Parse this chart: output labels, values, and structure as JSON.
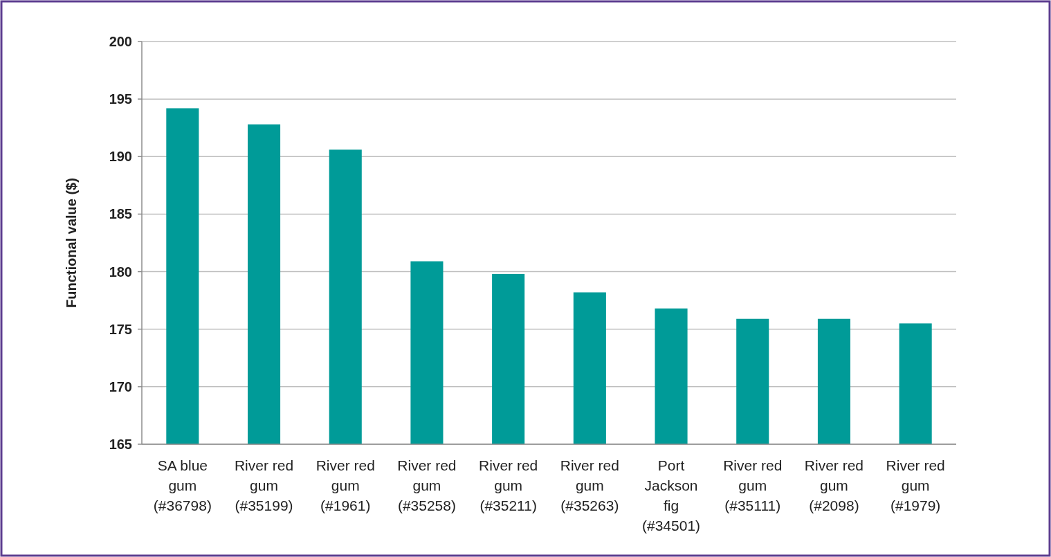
{
  "chart_data": {
    "type": "bar",
    "ylabel": "Functional value ($)",
    "categories": [
      "SA blue gum (#36798)",
      "River red gum (#35199)",
      "River red gum (#1961)",
      "River red gum (#35258)",
      "River red gum (#35211)",
      "River red gum (#35263)",
      "Port Jackson fig (#34501)",
      "River red gum (#35111)",
      "River red gum (#2098)",
      "River red gum (#1979)"
    ],
    "values": [
      194.2,
      192.8,
      190.6,
      180.9,
      179.8,
      178.2,
      176.8,
      175.9,
      175.9,
      175.5
    ],
    "color": "#009b98",
    "ylim": [
      165,
      200
    ],
    "yticks": [
      165,
      170,
      175,
      180,
      185,
      190,
      195,
      200
    ],
    "grid": "y"
  }
}
